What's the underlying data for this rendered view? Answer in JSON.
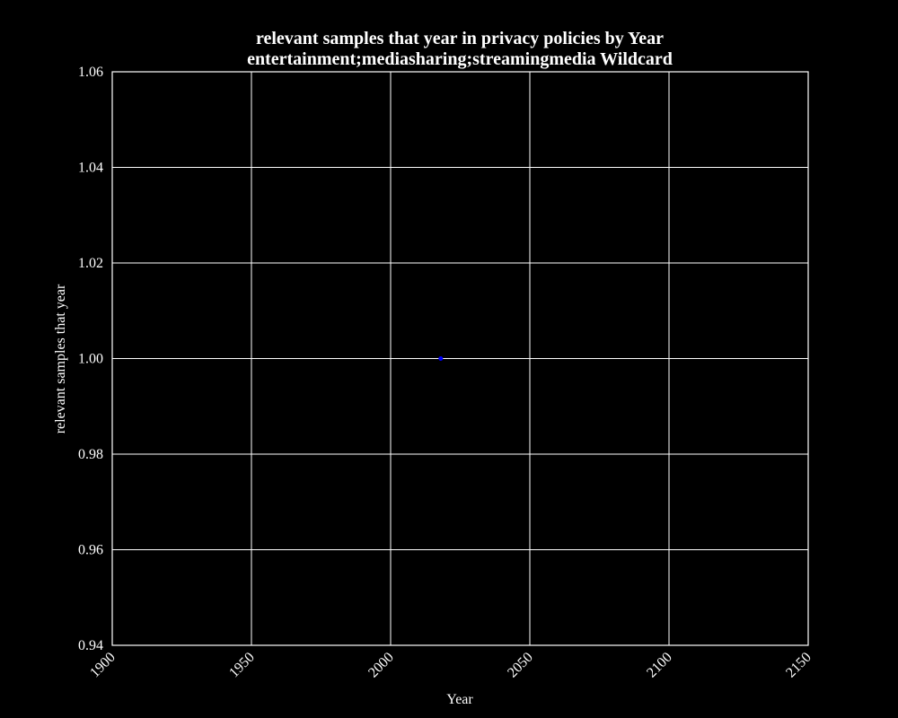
{
  "chart_data": {
    "type": "scatter",
    "title_lines": [
      "relevant samples that year in privacy policies by Year",
      "entertainment;mediasharing;streamingmedia Wildcard"
    ],
    "xlabel": "Year",
    "ylabel": "relevant samples that year",
    "xlim": [
      1900,
      2150
    ],
    "ylim": [
      0.94,
      1.06
    ],
    "x_ticks": [
      "1900",
      "1950",
      "2000",
      "2050",
      "2100",
      "2150"
    ],
    "y_ticks": [
      "1.06",
      "1.04",
      "1.02",
      "1.00",
      "0.98",
      "0.96",
      "0.94"
    ],
    "grid": true,
    "background_color": "#000000",
    "foreground_color": "#ffffff",
    "point_color": "#0000ff",
    "points": [
      {
        "x": 2018,
        "y": 1.0
      }
    ]
  }
}
